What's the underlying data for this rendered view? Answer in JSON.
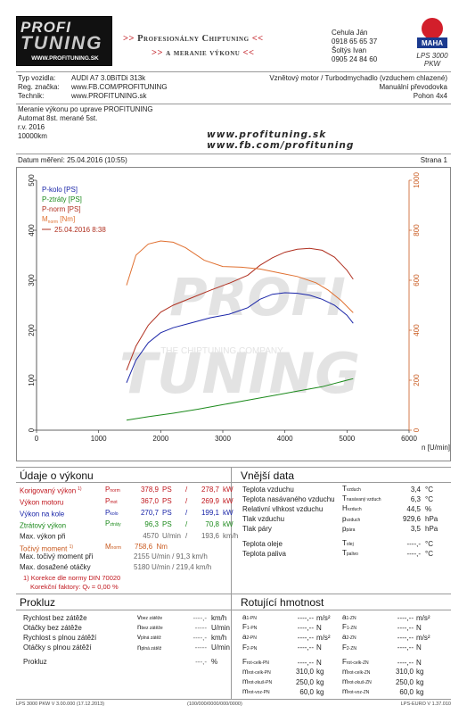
{
  "header": {
    "logo_top": "PROFI",
    "logo_bottom": "TUNING",
    "logo_url": "WWW.PROFITUNING.SK",
    "banner_line1": "Profesionálny Chiptuning",
    "banner_line2": "a meranie výkonu",
    "contact": [
      "Cehula Ján",
      "0918 65 65 37",
      "Šoltýs Ivan",
      "0905 24 84 60"
    ],
    "maha_name": "MAHA",
    "maha_caption": "LPS 3000 PKW"
  },
  "vehicle": {
    "left_labels": [
      "Typ vozidla:",
      "Reg. značka:",
      "Technik:"
    ],
    "left_values": [
      "AUDI A7 3.0BiTDi 313k",
      "www.FB.COM/PROFITUNING",
      "www.PROFITUNING.sk"
    ],
    "right": [
      "Vznětový motor / Turbodmychadlo (vzduchem chlazené)",
      "Manuální převodovka",
      "Pohon 4x4"
    ]
  },
  "notes": [
    "Meranie výkonu po uprave PROFITUNING",
    "Automat 8st. merané 5st.",
    "r.v. 2016",
    "10000km"
  ],
  "watermark_urls": [
    "www.profituning.sk",
    "www.fb.com/profituning"
  ],
  "measure": {
    "date_label": "Datum měření: 25.04.2016 (10:55)",
    "page": "Strana 1"
  },
  "chart_data": {
    "type": "line",
    "xlabel": "n [U/min]",
    "xlim": [
      0,
      6000
    ],
    "xticks": [
      0,
      1000,
      2000,
      3000,
      4000,
      5000,
      6000
    ],
    "ylim_left": [
      0,
      500
    ],
    "yticks_left": [
      0,
      100,
      200,
      300,
      400,
      500
    ],
    "ylim_right": [
      0,
      1000
    ],
    "yticks_right": [
      0,
      200,
      400,
      600,
      800,
      1000
    ],
    "legend": [
      "P-kolo [PS]",
      "P-ztráty [PS]",
      "P-norm [PS]",
      "M",
      "norm",
      "[Nm]",
      "25.04.2016 8:38"
    ],
    "legend_position": "top-left",
    "grid": false,
    "watermark": [
      "PROFI",
      "TUNING",
      "THE CHIPTUNING COMPANY"
    ],
    "series": [
      {
        "name": "P-kolo [PS]",
        "color": "#1a25a8",
        "axis": "left",
        "x": [
          1450,
          1600,
          1800,
          2000,
          2200,
          2500,
          2800,
          3100,
          3400,
          3600,
          3800,
          4000,
          4200,
          4400,
          4600,
          4800,
          5000,
          5100
        ],
        "y": [
          95,
          140,
          175,
          195,
          205,
          215,
          225,
          232,
          245,
          262,
          272,
          275,
          274,
          270,
          262,
          250,
          230,
          214
        ]
      },
      {
        "name": "P-ztráty [PS]",
        "color": "#1c8a1c",
        "axis": "left",
        "x": [
          1450,
          1800,
          2200,
          2600,
          3000,
          3400,
          3800,
          4200,
          4600,
          5000,
          5100
        ],
        "y": [
          20,
          27,
          34,
          42,
          51,
          60,
          69,
          78,
          87,
          100,
          103
        ]
      },
      {
        "name": "P-norm [PS]",
        "color": "#b03020",
        "axis": "left",
        "x": [
          1450,
          1600,
          1800,
          2000,
          2200,
          2500,
          2800,
          3100,
          3400,
          3600,
          3800,
          4000,
          4200,
          4400,
          4600,
          4800,
          5000,
          5100
        ],
        "y": [
          120,
          168,
          210,
          236,
          250,
          265,
          280,
          294,
          310,
          330,
          345,
          356,
          362,
          364,
          360,
          346,
          320,
          302
        ]
      },
      {
        "name": "M norm [Nm]",
        "color": "#e07030",
        "axis": "right",
        "x": [
          1450,
          1600,
          1800,
          2000,
          2200,
          2400,
          2700,
          3000,
          3300,
          3600,
          3900,
          4200,
          4500,
          4700,
          4900,
          5100
        ],
        "y": [
          580,
          700,
          745,
          757,
          752,
          730,
          680,
          655,
          652,
          645,
          630,
          615,
          590,
          560,
          520,
          470
        ]
      }
    ]
  },
  "vykon": {
    "title": "Údaje o výkonu",
    "rows": [
      {
        "label": "Korigovaný výkon",
        "sup": "1)",
        "sym": "P",
        "sub": "norm",
        "v1": "378,9",
        "u1": "PS",
        "v2": "278,7",
        "u2": "kW",
        "cls": "red"
      },
      {
        "label": "Výkon motoru",
        "sup": "",
        "sym": "P",
        "sub": "mot",
        "v1": "367,0",
        "u1": "PS",
        "v2": "269,9",
        "u2": "kW",
        "cls": "red"
      },
      {
        "label": "Výkon na kole",
        "sup": "",
        "sym": "P",
        "sub": "kolo",
        "v1": "270,7",
        "u1": "PS",
        "v2": "199,1",
        "u2": "kW",
        "cls": "blue"
      },
      {
        "label": "Ztrátový výkon",
        "sup": "",
        "sym": "P",
        "sub": "ztráty",
        "v1": "96,3",
        "u1": "PS",
        "v2": "70,8",
        "u2": "kW",
        "cls": "green"
      },
      {
        "label": "Max. výkon při",
        "sup": "",
        "sym": "",
        "sub": "",
        "v1": "4570",
        "u1": "U/min",
        "v2": "193,6",
        "u2": "km/h",
        "cls": "plain"
      }
    ],
    "torque": {
      "label": "Točivý moment",
      "sup": "1)",
      "sym": "M",
      "sub": "norm",
      "val": "758,6",
      "unit": "Nm"
    },
    "torque_at": {
      "label": "Max. točivý moment při",
      "v1": "2155",
      "u1": "U/min",
      "v2": "91,3",
      "u2": "km/h"
    },
    "max_rpm": {
      "label": "Max. dosažené otáčky",
      "v1": "5180",
      "u1": "U/min",
      "v2": "219,4",
      "u2": "km/h"
    },
    "korekce": "1) Korekce dle normy DIN 70020",
    "faktor": "Korekční faktory: Q",
    "faktor_sub": "v",
    "faktor_val": "= 0,00 %"
  },
  "vnejsi": {
    "title": "Vnější data",
    "rows": [
      {
        "label": "Teplota vzduchu",
        "sym": "T",
        "sub": "vzduch",
        "val": "3,4",
        "unit": "°C"
      },
      {
        "label": "Teplota nasávaného vzduchu",
        "sym": "T",
        "sub": "nasávaný vzduch",
        "val": "6,3",
        "unit": "°C"
      },
      {
        "label": "Relativní vlhkost vzduchu",
        "sym": "H",
        "sub": "vzduch",
        "val": "44,5",
        "unit": "%"
      },
      {
        "label": "Tlak vzduchu",
        "sym": "p",
        "sub": "vzduch",
        "val": "929,6",
        "unit": "hPa"
      },
      {
        "label": "Tlak páry",
        "sym": "p",
        "sub": "pára",
        "val": "3,5",
        "unit": "hPa"
      },
      {
        "label": "Teplota oleje",
        "sym": "T",
        "sub": "olej",
        "val": "----,-",
        "unit": "°C"
      },
      {
        "label": "Teplota paliva",
        "sym": "T",
        "sub": "palivo",
        "val": "----,-",
        "unit": "°C"
      }
    ]
  },
  "prokluz": {
    "title": "Prokluz",
    "rows": [
      {
        "label": "Rychlost bez zátěže",
        "sym": "v",
        "sub": "bez zátěže",
        "val": "----,-",
        "unit": "km/h"
      },
      {
        "label": "Otáčky bez zátěže",
        "sym": "n",
        "sub": "bez zátěže",
        "val": "-----",
        "unit": "U/min"
      },
      {
        "label": "Rychlost s plnou zátěží",
        "sym": "v",
        "sub": "plná zátěž",
        "val": "----,-",
        "unit": "km/h"
      },
      {
        "label": "Otáčky s plnou zátěží",
        "sym": "n",
        "sub": "plná zátěž",
        "val": "-----",
        "unit": "U/min"
      },
      {
        "label": "Prokluz",
        "sym": "",
        "sub": "",
        "val": "---,-",
        "unit": "%"
      }
    ]
  },
  "rotacni": {
    "title": "Rotující hmotnost",
    "rows": [
      {
        "s1": "a",
        "b1": "1-PN",
        "v1": "----,--",
        "u1": "m/s²",
        "s2": "a",
        "b2": "1-ZN",
        "v2": "----,--",
        "u2": "m/s²"
      },
      {
        "s1": "F",
        "b1": "1-PN",
        "v1": "----,--",
        "u1": "N",
        "s2": "F",
        "b2": "1-ZN",
        "v2": "----,--",
        "u2": "N"
      },
      {
        "s1": "a",
        "b1": "2-PN",
        "v1": "----,--",
        "u1": "m/s²",
        "s2": "a",
        "b2": "2-ZN",
        "v2": "----,--",
        "u2": "m/s²"
      },
      {
        "s1": "F",
        "b1": "2-PN",
        "v1": "----,--",
        "u1": "N",
        "s2": "F",
        "b2": "2-ZN",
        "v2": "----,--",
        "u2": "N"
      },
      {
        "s1": "F",
        "b1": "rot-celk-PN",
        "v1": "----,--",
        "u1": "N",
        "s2": "F",
        "b2": "rot-celk-ZN",
        "v2": "----,--",
        "u2": "N"
      },
      {
        "s1": "m",
        "b1": "rot-celk-PN",
        "v1": "310,0",
        "u1": "kg",
        "s2": "m",
        "b2": "rot-celk-ZN",
        "v2": "310,0",
        "u2": "kg"
      },
      {
        "s1": "m",
        "b1": "rot-zkuš-PN",
        "v1": "250,0",
        "u1": "kg",
        "s2": "m",
        "b2": "rot-zkuš-ZN",
        "v2": "250,0",
        "u2": "kg"
      },
      {
        "s1": "m",
        "b1": "rot-voz-PN",
        "v1": "60,0",
        "u1": "kg",
        "s2": "m",
        "b2": "rot-voz-ZN",
        "v2": "60,0",
        "u2": "kg"
      }
    ]
  },
  "footer": {
    "left": "LPS 3000 PKW V 3.00.000 (17.12.2013)",
    "center": "(100/000/0000/000/0000)",
    "right": "LPS-EURO V 1.37.010"
  }
}
